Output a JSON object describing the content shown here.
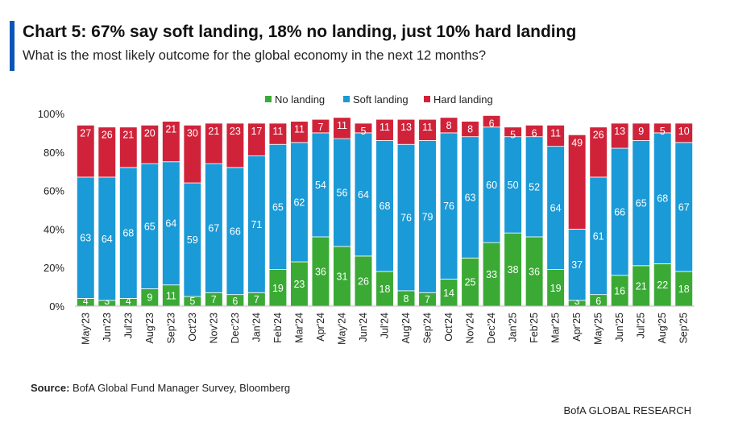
{
  "header": {
    "title": "Chart 5: 67% say soft landing, 18% no landing, just 10% hard landing",
    "subtitle": "What is the most likely outcome for the global economy in the next 12 months?"
  },
  "footer": {
    "source_label": "Source:",
    "source_text": "BofA Global Fund Manager Survey, Bloomberg",
    "brand": "BofA GLOBAL RESEARCH"
  },
  "colors": {
    "no_landing": "#3aaa35",
    "soft_landing": "#1a9ad6",
    "hard_landing": "#d0233a",
    "accent": "#0a56b8"
  },
  "chart_data": {
    "type": "bar",
    "stacked": true,
    "title": "Chart 5: 67% say soft landing, 18% no landing, just 10% hard landing",
    "subtitle": "What is the most likely outcome for the global economy in the next 12 months?",
    "xlabel": "",
    "ylabel": "",
    "ylim": [
      0,
      100
    ],
    "yticks": [
      "0%",
      "20%",
      "40%",
      "60%",
      "80%",
      "100%"
    ],
    "legend_position": "top",
    "grid": false,
    "categories": [
      "May'23",
      "Jun'23",
      "Jul'23",
      "Aug'23",
      "Sep'23",
      "Oct'23",
      "Nov'23",
      "Dec'23",
      "Jan'24",
      "Feb'24",
      "Mar'24",
      "Apr'24",
      "May'24",
      "Jun'24",
      "Jul'24",
      "Aug'24",
      "Sep'24",
      "Oct'24",
      "Nov'24",
      "Dec'24",
      "Jan'25",
      "Feb'25",
      "Mar'25",
      "Apr'25",
      "May'25",
      "Jun'25",
      "Jul'25",
      "Aug'25",
      "Sep'25"
    ],
    "series": [
      {
        "name": "No landing",
        "color": "#3aaa35",
        "values": [
          4,
          3,
          4,
          9,
          11,
          5,
          7,
          6,
          7,
          19,
          23,
          36,
          31,
          26,
          18,
          8,
          7,
          14,
          25,
          33,
          38,
          36,
          19,
          3,
          6,
          16,
          21,
          22,
          18
        ]
      },
      {
        "name": "Soft landing",
        "color": "#1a9ad6",
        "values": [
          63,
          64,
          68,
          65,
          64,
          59,
          67,
          66,
          71,
          65,
          62,
          54,
          56,
          64,
          68,
          76,
          79,
          76,
          63,
          60,
          50,
          52,
          64,
          37,
          61,
          66,
          65,
          68,
          67
        ]
      },
      {
        "name": "Hard landing",
        "color": "#d0233a",
        "values": [
          27,
          26,
          21,
          20,
          21,
          30,
          21,
          23,
          17,
          11,
          11,
          7,
          11,
          5,
          11,
          13,
          11,
          8,
          8,
          6,
          5,
          6,
          11,
          49,
          26,
          13,
          9,
          5,
          10
        ]
      }
    ]
  }
}
